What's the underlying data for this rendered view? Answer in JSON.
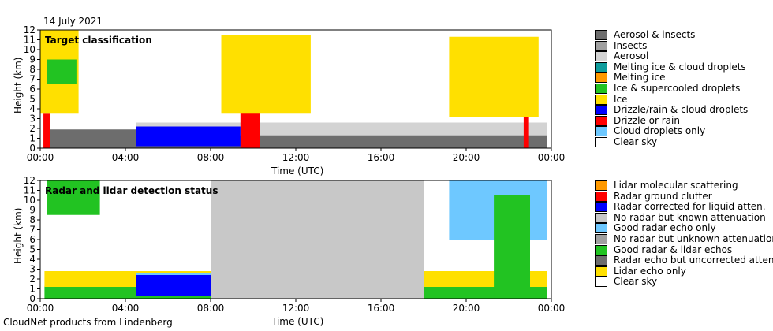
{
  "header": {
    "date": "14 July 2021"
  },
  "footer": {
    "credit": "CloudNet products from Lindenberg"
  },
  "chart_data": [
    {
      "type": "heatmap",
      "title": "Target classification",
      "xlabel": "Time (UTC)",
      "ylabel": "Height (km)",
      "xlim": [
        "00:00",
        "24:00"
      ],
      "ylim": [
        0,
        12
      ],
      "x_ticks": [
        "00:00",
        "04:00",
        "08:00",
        "12:00",
        "16:00",
        "20:00",
        "00:00"
      ],
      "y_ticks": [
        "0",
        "1",
        "2",
        "3",
        "4",
        "5",
        "6",
        "7",
        "8",
        "9",
        "10",
        "11",
        "12"
      ],
      "legend": [
        {
          "label": "Aerosol & insects",
          "color": "#6d6d6d"
        },
        {
          "label": "Insects",
          "color": "#a0a0a0"
        },
        {
          "label": "Aerosol",
          "color": "#d3d3d3"
        },
        {
          "label": "Melting ice & cloud droplets",
          "color": "#0e9c9c"
        },
        {
          "label": "Melting ice",
          "color": "#ff9900"
        },
        {
          "label": "Ice & supercooled droplets",
          "color": "#22c322"
        },
        {
          "label": "Ice",
          "color": "#ffe000"
        },
        {
          "label": "Drizzle/rain & cloud droplets",
          "color": "#0000ff"
        },
        {
          "label": "Drizzle or rain",
          "color": "#ff0000"
        },
        {
          "label": "Cloud droplets only",
          "color": "#6ec8ff"
        },
        {
          "label": "Clear sky",
          "color": "#ffffff"
        }
      ],
      "regions": [
        {
          "class": "Aerosol & insects",
          "t": [
            0.3,
            4.5
          ],
          "h": [
            0,
            1.9
          ]
        },
        {
          "class": "Aerosol & insects",
          "t": [
            4.5,
            23.8
          ],
          "h": [
            0,
            1.5
          ]
        },
        {
          "class": "Aerosol",
          "t": [
            4.5,
            23.8
          ],
          "h": [
            1.3,
            2.6
          ]
        },
        {
          "class": "Drizzle or rain",
          "t": [
            0.15,
            0.45
          ],
          "h": [
            0,
            3.5
          ]
        },
        {
          "class": "Drizzle or rain",
          "t": [
            9.4,
            10.3
          ],
          "h": [
            0,
            3.6
          ]
        },
        {
          "class": "Drizzle or rain",
          "t": [
            22.7,
            22.95
          ],
          "h": [
            0,
            3.2
          ]
        },
        {
          "class": "Ice",
          "t": [
            0,
            1.8
          ],
          "h": [
            3.5,
            12
          ]
        },
        {
          "class": "Ice",
          "t": [
            8.5,
            12.7
          ],
          "h": [
            3.5,
            11.5
          ]
        },
        {
          "class": "Ice",
          "t": [
            19.2,
            23.4
          ],
          "h": [
            3.2,
            11.3
          ]
        },
        {
          "class": "Drizzle/rain & cloud droplets",
          "t": [
            4.5,
            9.4
          ],
          "h": [
            0.2,
            2.2
          ]
        },
        {
          "class": "Ice & supercooled droplets",
          "t": [
            0.3,
            1.7
          ],
          "h": [
            6.5,
            9
          ]
        }
      ]
    },
    {
      "type": "heatmap",
      "title": "Radar and lidar detection status",
      "xlabel": "Time (UTC)",
      "ylabel": "Height (km)",
      "xlim": [
        "00:00",
        "24:00"
      ],
      "ylim": [
        0,
        12
      ],
      "x_ticks": [
        "00:00",
        "04:00",
        "08:00",
        "12:00",
        "16:00",
        "20:00",
        "00:00"
      ],
      "y_ticks": [
        "0",
        "1",
        "2",
        "3",
        "4",
        "5",
        "6",
        "7",
        "8",
        "9",
        "10",
        "11",
        "12"
      ],
      "legend": [
        {
          "label": "Lidar molecular scattering",
          "color": "#ff9900"
        },
        {
          "label": "Radar ground clutter",
          "color": "#ff0000"
        },
        {
          "label": "Radar corrected for liquid atten.",
          "color": "#0000ff"
        },
        {
          "label": "No radar but known attenuation",
          "color": "#c8c8c8"
        },
        {
          "label": "Good radar echo only",
          "color": "#6ec8ff"
        },
        {
          "label": "No radar but unknown attenuation",
          "color": "#a0a0a0"
        },
        {
          "label": "Good radar & lidar echos",
          "color": "#22c322"
        },
        {
          "label": "Radar echo but uncorrected atten.",
          "color": "#6d6d6d"
        },
        {
          "label": "Lidar echo only",
          "color": "#ffe000"
        },
        {
          "label": "Clear sky",
          "color": "#ffffff"
        }
      ],
      "regions": [
        {
          "class": "Good radar & lidar echos",
          "t": [
            0.2,
            23.8
          ],
          "h": [
            0,
            1.3
          ]
        },
        {
          "class": "Lidar echo only",
          "t": [
            0.2,
            23.8
          ],
          "h": [
            1.2,
            2.8
          ]
        },
        {
          "class": "Good radar echo only",
          "t": [
            4.5,
            9.3
          ],
          "h": [
            1.2,
            2.6
          ]
        },
        {
          "class": "Radar corrected for liquid atten.",
          "t": [
            4.5,
            9.3
          ],
          "h": [
            0.3,
            2.4
          ]
        },
        {
          "class": "Radar echo but uncorrected atten.",
          "t": [
            9.3,
            10.3
          ],
          "h": [
            0,
            12
          ]
        },
        {
          "class": "Radar corrected for liquid atten.",
          "t": [
            8.5,
            13
          ],
          "h": [
            2.5,
            11
          ]
        },
        {
          "class": "No radar but known attenuation",
          "t": [
            8,
            18
          ],
          "h": [
            0,
            12
          ]
        },
        {
          "class": "Good radar & lidar echos",
          "t": [
            0.3,
            2.8
          ],
          "h": [
            8.5,
            12
          ]
        },
        {
          "class": "Good radar echo only",
          "t": [
            19.2,
            23.8
          ],
          "h": [
            6,
            12
          ]
        },
        {
          "class": "Good radar & lidar echos",
          "t": [
            21.3,
            23
          ],
          "h": [
            0,
            10.5
          ]
        }
      ]
    }
  ]
}
